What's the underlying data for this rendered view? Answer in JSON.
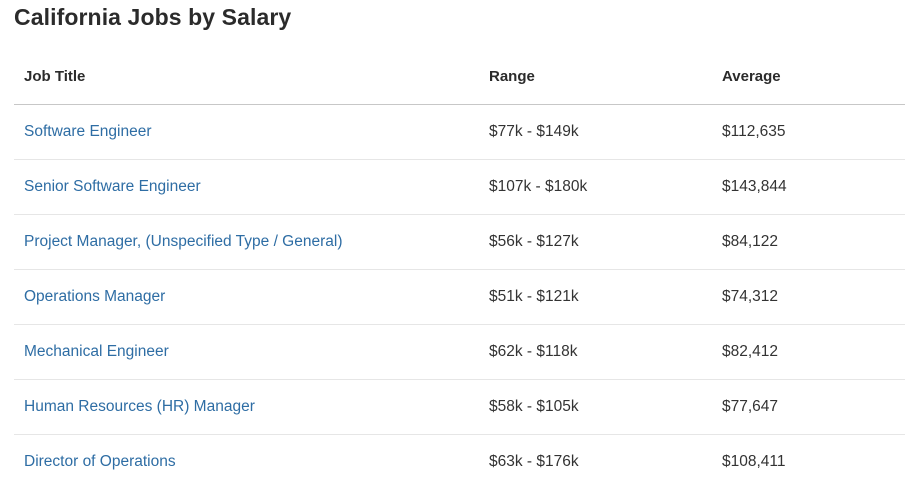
{
  "page": {
    "title": "California Jobs by Salary"
  },
  "table": {
    "headers": {
      "job_title": "Job Title",
      "range": "Range",
      "average": "Average"
    },
    "rows": [
      {
        "title": "Software Engineer",
        "range": "$77k - $149k",
        "average": "$112,635"
      },
      {
        "title": "Senior Software Engineer",
        "range": "$107k - $180k",
        "average": "$143,844"
      },
      {
        "title": "Project Manager, (Unspecified Type / General)",
        "range": "$56k - $127k",
        "average": "$84,122"
      },
      {
        "title": "Operations Manager",
        "range": "$51k - $121k",
        "average": "$74,312"
      },
      {
        "title": "Mechanical Engineer",
        "range": "$62k - $118k",
        "average": "$82,412"
      },
      {
        "title": "Human Resources (HR) Manager",
        "range": "$58k - $105k",
        "average": "$77,647"
      },
      {
        "title": "Director of Operations",
        "range": "$63k - $176k",
        "average": "$108,411"
      }
    ]
  },
  "colors": {
    "link": "#2e6da4",
    "text": "#333333",
    "divider": "#e6e6e6",
    "header_divider": "#c7c7c7"
  }
}
